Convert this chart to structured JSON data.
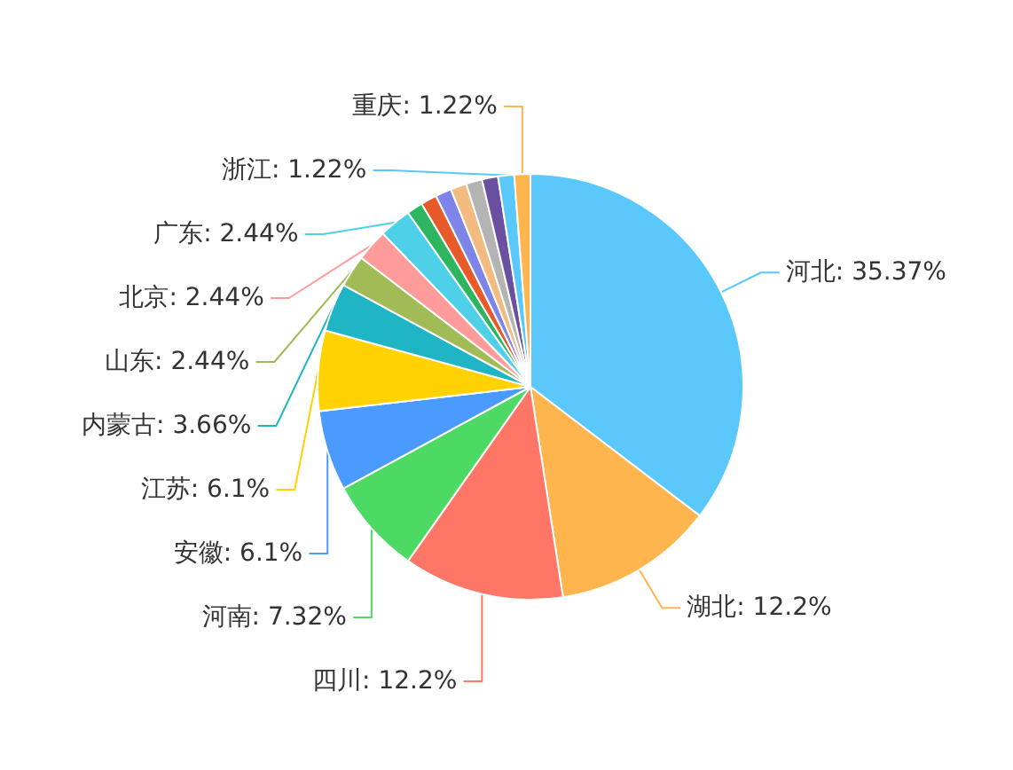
{
  "chart_data": {
    "type": "pie",
    "categories": [
      "河北",
      "湖北",
      "四川",
      "河南",
      "安徽",
      "江苏",
      "内蒙古",
      "山东",
      "北京",
      "广东",
      null,
      null,
      null,
      null,
      null,
      null,
      "浙江",
      "重庆"
    ],
    "values": [
      35.37,
      12.2,
      12.2,
      7.32,
      6.1,
      6.1,
      3.66,
      2.44,
      2.44,
      2.44,
      1.22,
      1.22,
      1.22,
      1.22,
      1.22,
      1.22,
      1.22,
      1.22
    ],
    "colors": [
      "#5ac8fa",
      "#ffb54d",
      "#ff7566",
      "#4cd964",
      "#4b9bff",
      "#ffd200",
      "#1fb5c4",
      "#a1bb57",
      "#ff9b9b",
      "#4dd0e8",
      "#2db560",
      "#e85a2a",
      "#7f84e8",
      "#f2bb80",
      "#b4b4b4",
      "#6b4fa0",
      "#5ac8fa",
      "#ffb54d"
    ],
    "value_labels": [
      "35.37%",
      "12.2%",
      "12.2%",
      "7.32%",
      "6.1%",
      "6.1%",
      "3.66%",
      "2.44%",
      "2.44%",
      "2.44%",
      null,
      null,
      null,
      null,
      null,
      null,
      "1.22%",
      "1.22%"
    ]
  }
}
